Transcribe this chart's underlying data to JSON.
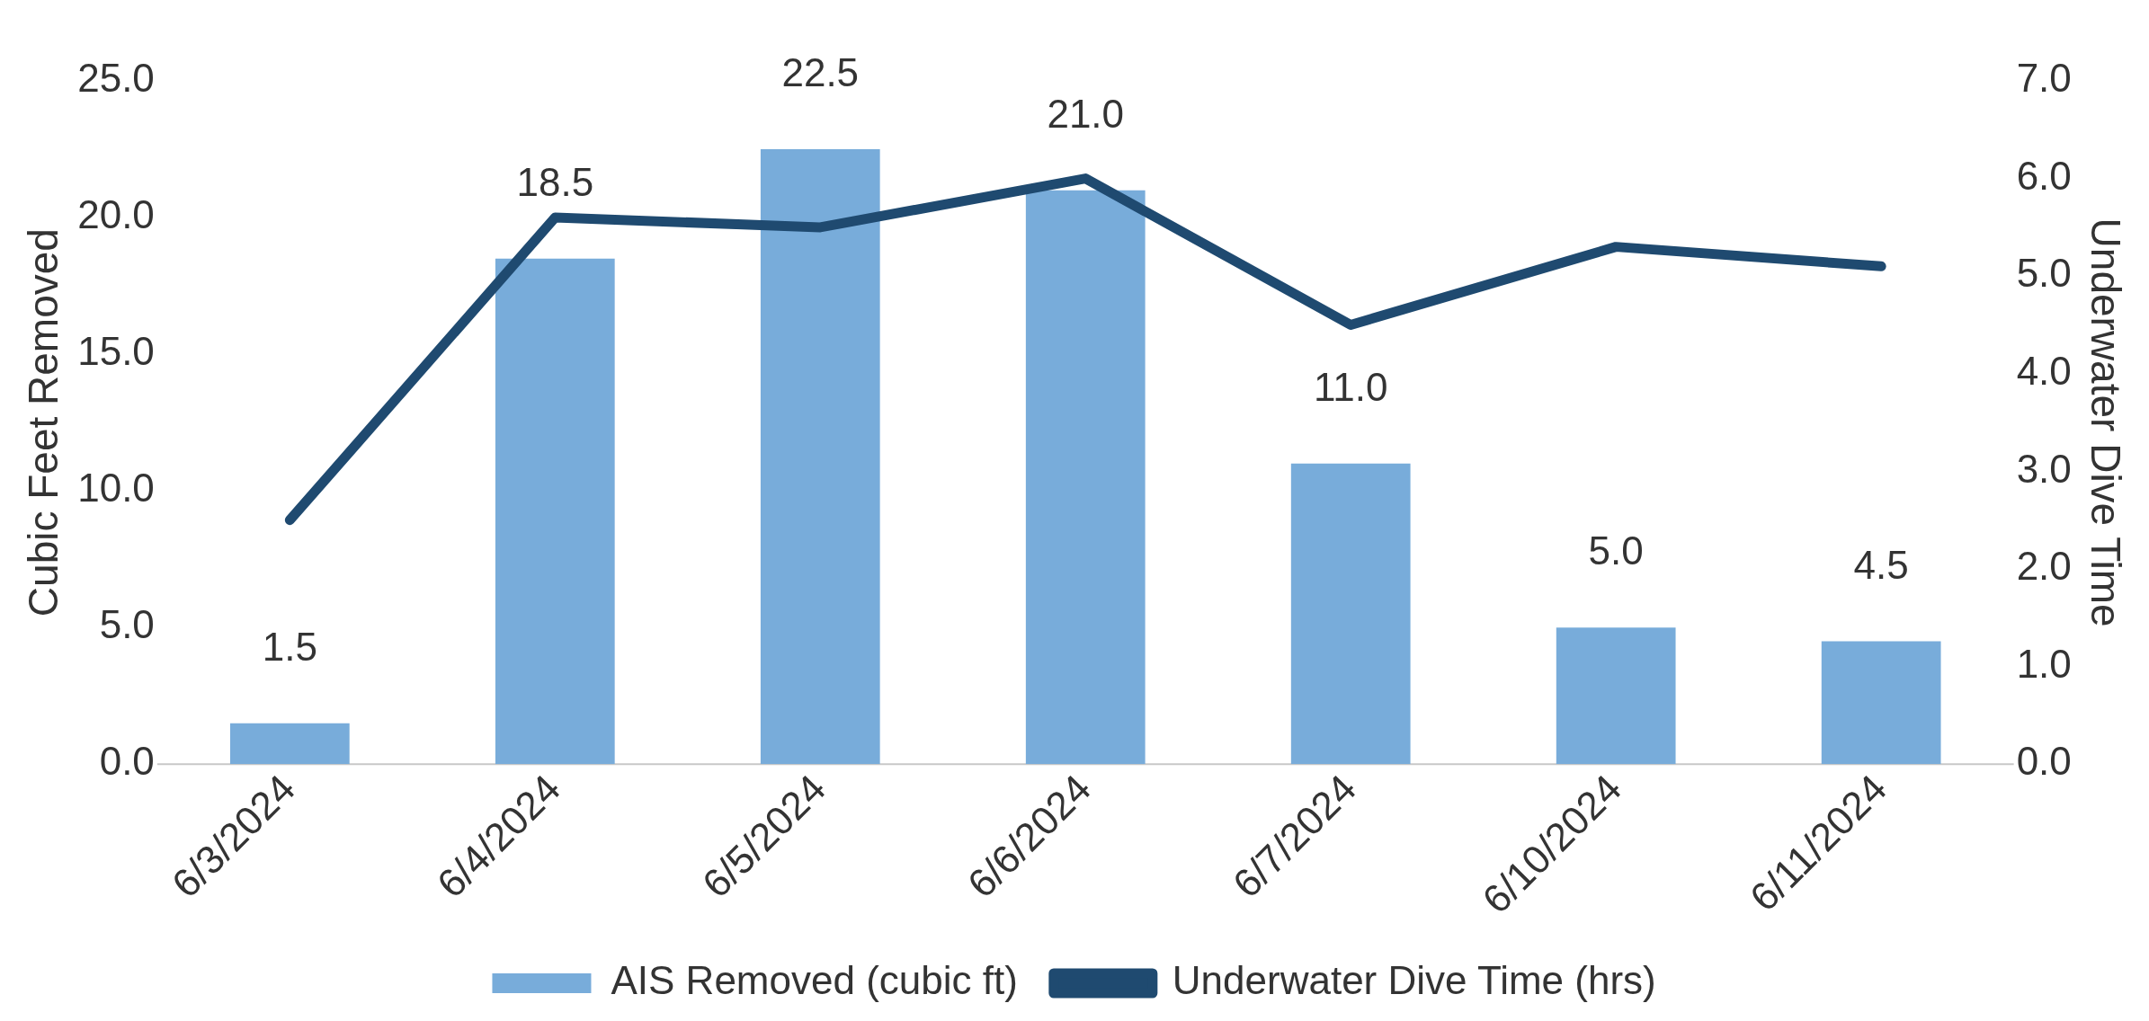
{
  "chart_data": {
    "type": "bar",
    "categories": [
      "6/3/2024",
      "6/4/2024",
      "6/5/2024",
      "6/6/2024",
      "6/7/2024",
      "6/10/2024",
      "6/11/2024"
    ],
    "ylabel": "Cubic Feet Removed",
    "y2label": "Underwater Dive Time",
    "series": [
      {
        "name": "AIS Removed (cubic ft)",
        "color": "#78acda",
        "values": [
          1.5,
          18.5,
          22.5,
          21.0,
          11.0,
          5.0,
          4.5
        ],
        "value_labels": [
          "1.5",
          "18.5",
          "22.5",
          "21.0",
          "11.0",
          "5.0",
          "4.5"
        ]
      },
      {
        "name": "Underwater Dive Time (hrs)",
        "type": "line",
        "axis": "y2",
        "color": "#1f4a70",
        "values": [
          2.5,
          5.6,
          5.5,
          6.0,
          4.5,
          5.3,
          5.1
        ]
      }
    ],
    "ylim": [
      0,
      25
    ],
    "yticks": [
      {
        "value": 0,
        "label": "0.0"
      },
      {
        "value": 5,
        "label": "5.0"
      },
      {
        "value": 10,
        "label": "10.0"
      },
      {
        "value": 15,
        "label": "15.0"
      },
      {
        "value": 20,
        "label": "20.0"
      },
      {
        "value": 25,
        "label": "25.0"
      }
    ],
    "y2lim": [
      0,
      7
    ],
    "y2ticks": [
      {
        "value": 0,
        "label": "0.0"
      },
      {
        "value": 1,
        "label": "1.0"
      },
      {
        "value": 2,
        "label": "2.0"
      },
      {
        "value": 3,
        "label": "3.0"
      },
      {
        "value": 4,
        "label": "4.0"
      },
      {
        "value": 5,
        "label": "5.0"
      },
      {
        "value": 6,
        "label": "6.0"
      },
      {
        "value": 7,
        "label": "7.0"
      }
    ],
    "grid": false,
    "legend": "bottom",
    "marker": "none"
  }
}
